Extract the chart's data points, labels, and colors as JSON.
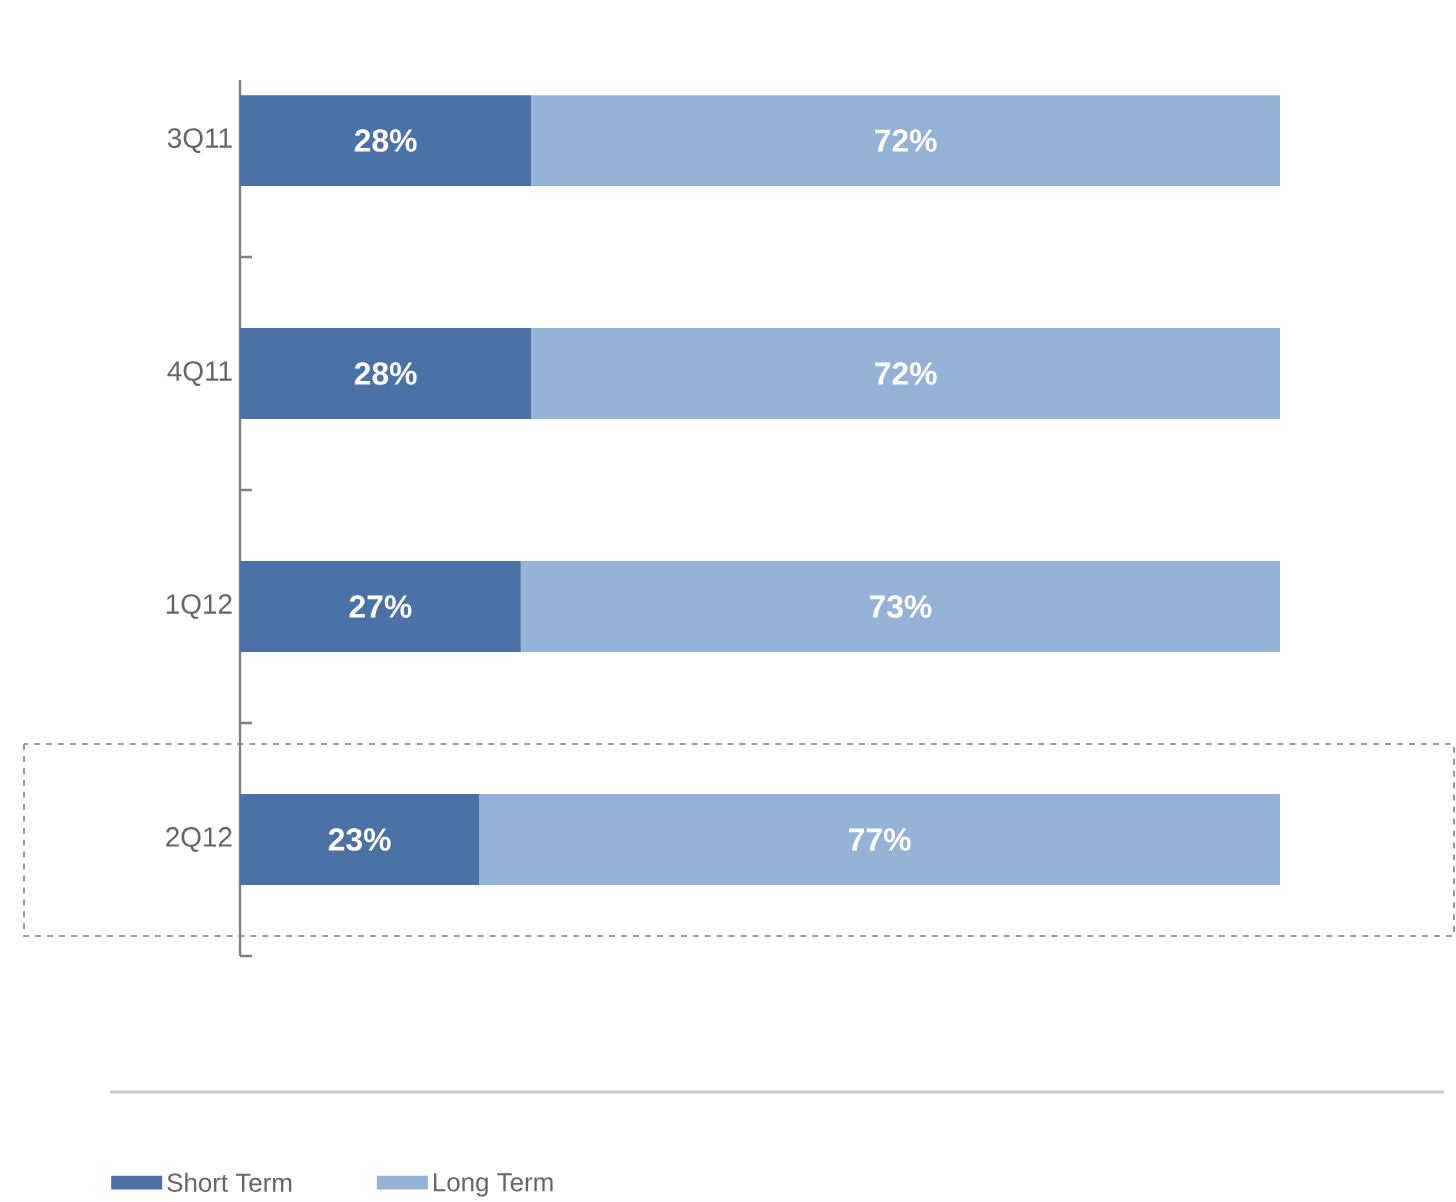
{
  "chart_data": {
    "type": "bar",
    "orientation": "horizontal",
    "stacked": true,
    "categories": [
      "3Q11",
      "4Q11",
      "1Q12",
      "2Q12"
    ],
    "series": [
      {
        "name": "Short Term",
        "color": "#4a72a6",
        "values": [
          28,
          28,
          27,
          23
        ],
        "value_labels": [
          "28%",
          "28%",
          "27%",
          "23%"
        ]
      },
      {
        "name": "Long Term",
        "color": "#95b3d7",
        "values": [
          72,
          72,
          73,
          77
        ],
        "value_labels": [
          "72%",
          "72%",
          "73%",
          "77%"
        ]
      }
    ],
    "legend": "bottom left"
  }
}
